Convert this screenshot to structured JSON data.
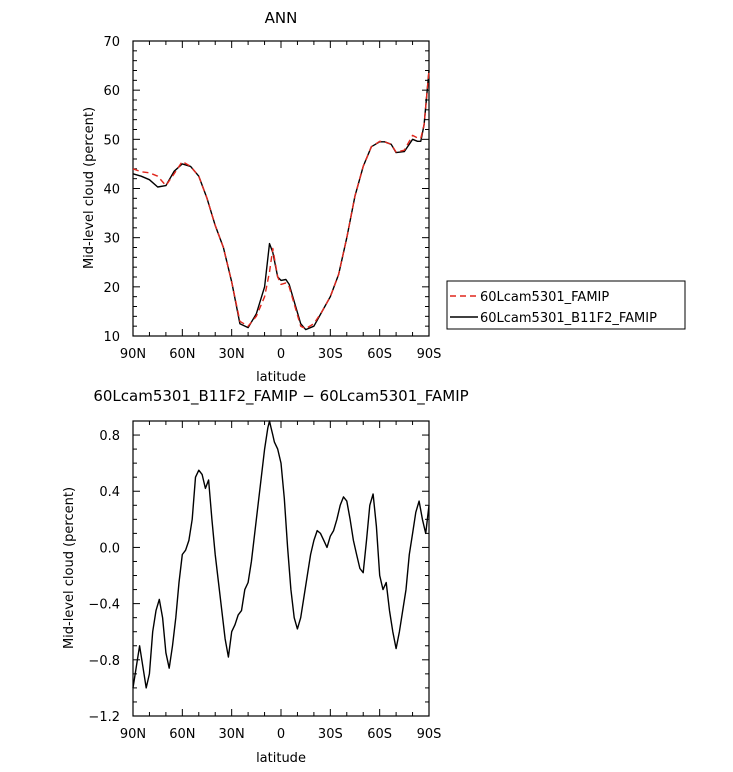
{
  "chart_data": [
    {
      "type": "line",
      "title": "ANN",
      "xlabel": "latitude",
      "ylabel": "Mid-level cloud (percent)",
      "x_tick_labels": [
        "90N",
        "60N",
        "30N",
        "0",
        "30S",
        "60S",
        "90S"
      ],
      "x_tick_values": [
        90,
        60,
        30,
        0,
        -30,
        -60,
        -90
      ],
      "y_tick_labels": [
        "10",
        "20",
        "30",
        "40",
        "50",
        "60",
        "70"
      ],
      "xlim": [
        90,
        -90
      ],
      "ylim": [
        10,
        70
      ],
      "grid": false,
      "legend_placement": "right",
      "series": [
        {
          "name": "60Lcam5301_FAMIP",
          "color": "#e0261c",
          "dash": "dashed",
          "x": [
            90,
            85,
            80,
            75,
            70,
            65,
            60,
            55,
            50,
            45,
            40,
            35,
            30,
            25,
            20,
            15,
            10,
            7,
            5,
            2,
            0,
            -3,
            -5,
            -8,
            -12,
            -15,
            -20,
            -25,
            -30,
            -35,
            -40,
            -45,
            -50,
            -55,
            -60,
            -63,
            -67,
            -70,
            -75,
            -80,
            -83,
            -85,
            -87,
            -90
          ],
          "y": [
            44,
            43.4,
            43.2,
            42.5,
            40.6,
            43,
            45.5,
            44.5,
            42.5,
            38,
            32.5,
            28,
            21,
            13,
            12,
            14,
            18,
            23,
            27.8,
            22,
            20.5,
            20.8,
            20,
            16.5,
            12,
            11.5,
            12.5,
            15,
            18,
            22.5,
            30,
            38.5,
            44.5,
            48.5,
            49.6,
            49.5,
            49,
            47.4,
            47.8,
            50.8,
            50.3,
            50.2,
            53,
            64
          ]
        },
        {
          "name": "60Lcam5301_B11F2_FAMIP",
          "color": "#000000",
          "dash": "solid",
          "x": [
            90,
            85,
            80,
            75,
            70,
            65,
            60,
            55,
            50,
            45,
            40,
            35,
            30,
            25,
            20,
            15,
            10,
            7,
            5,
            2,
            0,
            -3,
            -5,
            -8,
            -12,
            -15,
            -20,
            -25,
            -30,
            -35,
            -40,
            -45,
            -50,
            -55,
            -60,
            -63,
            -67,
            -70,
            -75,
            -80,
            -83,
            -85,
            -87,
            -90
          ],
          "y": [
            43,
            42.5,
            41.8,
            40.3,
            40.6,
            43.5,
            45,
            44.5,
            42.5,
            38,
            32.5,
            28,
            21,
            12.5,
            11.7,
            14.5,
            20,
            28.8,
            27,
            22,
            21.3,
            21.5,
            20.5,
            17,
            12.5,
            11.3,
            12,
            15,
            18,
            22.5,
            30,
            38.5,
            44.5,
            48.5,
            49.5,
            49.5,
            49,
            47.3,
            47.5,
            50,
            49.6,
            49.6,
            53,
            64
          ]
        }
      ]
    },
    {
      "type": "line",
      "title": "60Lcam5301_B11F2_FAMIP − 60Lcam5301_FAMIP",
      "xlabel": "latitude",
      "ylabel": "Mid-level cloud (percent)",
      "x_tick_labels": [
        "90N",
        "60N",
        "30N",
        "0",
        "30S",
        "60S",
        "90S"
      ],
      "x_tick_values": [
        90,
        60,
        30,
        0,
        -30,
        -60,
        -90
      ],
      "y_tick_labels": [
        "−1.2",
        "−0.8",
        "−0.4",
        "0.0",
        "0.4",
        "0.8"
      ],
      "xlim": [
        90,
        -90
      ],
      "ylim": [
        -1.2,
        0.9
      ],
      "grid": false,
      "series": [
        {
          "color": "#000000",
          "dash": "solid",
          "x": [
            90,
            88,
            86,
            84,
            82,
            80,
            78,
            76,
            74,
            72,
            70,
            68,
            66,
            64,
            62,
            60,
            58,
            56,
            54,
            52,
            50,
            48,
            46,
            44,
            42,
            40,
            38,
            36,
            34,
            32,
            30,
            28,
            26,
            24,
            22,
            20,
            18,
            16,
            14,
            12,
            10,
            8,
            7,
            6,
            5,
            4,
            2,
            0,
            -2,
            -4,
            -6,
            -8,
            -10,
            -12,
            -14,
            -16,
            -18,
            -20,
            -22,
            -24,
            -26,
            -28,
            -30,
            -32,
            -34,
            -36,
            -38,
            -40,
            -42,
            -44,
            -46,
            -48,
            -50,
            -52,
            -54,
            -56,
            -58,
            -60,
            -62,
            -64,
            -66,
            -68,
            -70,
            -72,
            -74,
            -76,
            -78,
            -80,
            -82,
            -84,
            -86,
            -88,
            -90
          ],
          "y": [
            -1.0,
            -0.85,
            -0.7,
            -0.85,
            -1.0,
            -0.9,
            -0.6,
            -0.45,
            -0.37,
            -0.5,
            -0.75,
            -0.86,
            -0.7,
            -0.5,
            -0.25,
            -0.05,
            -0.02,
            0.05,
            0.2,
            0.5,
            0.55,
            0.52,
            0.42,
            0.48,
            0.2,
            -0.05,
            -0.25,
            -0.45,
            -0.65,
            -0.78,
            -0.6,
            -0.55,
            -0.48,
            -0.45,
            -0.3,
            -0.25,
            -0.1,
            0.1,
            0.3,
            0.5,
            0.7,
            0.85,
            0.9,
            0.85,
            0.8,
            0.75,
            0.7,
            0.6,
            0.35,
            0.0,
            -0.3,
            -0.5,
            -0.58,
            -0.5,
            -0.35,
            -0.2,
            -0.05,
            0.05,
            0.12,
            0.1,
            0.05,
            0.0,
            0.08,
            0.12,
            0.2,
            0.3,
            0.36,
            0.33,
            0.2,
            0.05,
            -0.05,
            -0.15,
            -0.18,
            0.05,
            0.3,
            0.38,
            0.15,
            -0.2,
            -0.3,
            -0.25,
            -0.45,
            -0.6,
            -0.72,
            -0.6,
            -0.45,
            -0.3,
            -0.05,
            0.1,
            0.25,
            0.33,
            0.2,
            0.1,
            0.3
          ]
        }
      ]
    }
  ]
}
